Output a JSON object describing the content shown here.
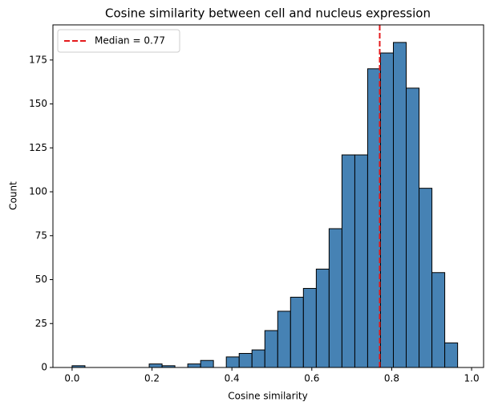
{
  "chart_data": {
    "type": "histogram",
    "title": "Cosine similarity between cell and nucleus expression",
    "x_label": "Cosine similarity",
    "y_label": "Count",
    "bins": [
      0,
      0.0322,
      0.0643,
      0.0965,
      0.1287,
      0.1608,
      0.193,
      0.2252,
      0.2573,
      0.2895,
      0.3217,
      0.3538,
      0.386,
      0.4182,
      0.4503,
      0.4825,
      0.5147,
      0.5468,
      0.579,
      0.6112,
      0.6433,
      0.6755,
      0.7077,
      0.7398,
      0.772,
      0.8042,
      0.8363,
      0.8685,
      0.9007,
      0.9328,
      0.965
    ],
    "values": [
      1,
      0,
      0,
      0,
      0,
      0,
      2,
      1,
      0,
      2,
      4,
      0,
      6,
      8,
      10,
      21,
      32,
      40,
      45,
      56,
      79,
      121,
      121,
      170,
      179,
      185,
      159,
      102,
      54,
      14
    ],
    "color": "#4682b4",
    "edge_color": "#000000",
    "median": {
      "value": 0.77,
      "label": "Median = 0.77",
      "color": "#e41a1c"
    },
    "legend_position": "upper-left",
    "xlim": [
      -0.048,
      1.03
    ],
    "ylim": [
      0,
      195
    ],
    "xticks": [
      {
        "value": 0,
        "label": "0.0"
      },
      0.2,
      0.4,
      0.6,
      0.8,
      {
        "value": 1,
        "label": "1.0"
      }
    ],
    "yticks": [
      0,
      25,
      50,
      75,
      100,
      125,
      150,
      175
    ]
  }
}
